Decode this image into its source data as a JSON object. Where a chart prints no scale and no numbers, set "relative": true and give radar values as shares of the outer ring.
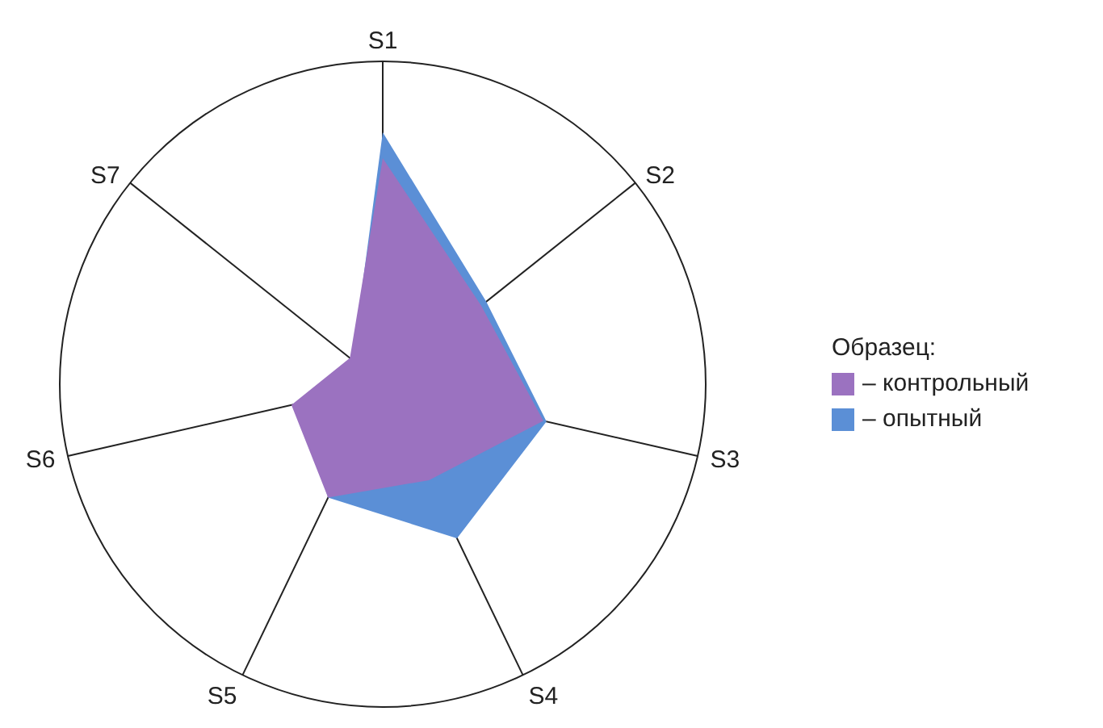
{
  "chart_data": {
    "type": "radar",
    "relative": true,
    "categories": [
      "S1",
      "S2",
      "S3",
      "S4",
      "S5",
      "S6",
      "S7"
    ],
    "legend_title": "Образец:",
    "legend": "right",
    "grid": true,
    "series": [
      {
        "name": "– контрольный",
        "color": "#9b72c0",
        "values": [
          0.7,
          0.39,
          0.51,
          0.33,
          0.39,
          0.29,
          0.13
        ]
      },
      {
        "name": "– опытный",
        "color": "#5b8fd6",
        "values": [
          0.78,
          0.41,
          0.52,
          0.53,
          0.39,
          0.27,
          0.12
        ]
      }
    ]
  }
}
